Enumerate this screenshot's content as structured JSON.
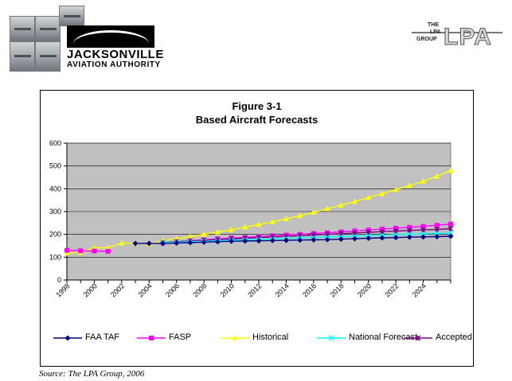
{
  "header": {
    "org_name": "JACKSONVILLE",
    "org_subtitle": "AVIATION AUTHORITY",
    "consultant_logo_small": [
      "THE",
      "LPA",
      "GROUP"
    ],
    "consultant_logo_big": "LPA"
  },
  "chart_data": {
    "type": "line",
    "title": "Figure 3-1",
    "subtitle": "Based Aircraft Forecasts",
    "xlabel": "",
    "ylabel": "",
    "ylim": [
      0,
      600
    ],
    "yticks": [
      0,
      100,
      200,
      300,
      400,
      500,
      600
    ],
    "xlim": [
      1998,
      2026
    ],
    "xticks": [
      1998,
      2000,
      2002,
      2004,
      2006,
      2008,
      2010,
      2012,
      2014,
      2016,
      2018,
      2020,
      2022,
      2024
    ],
    "grid": true,
    "legend_position": "bottom",
    "plot_background": "#c0c0c0",
    "x": [
      1998,
      1999,
      2000,
      2001,
      2002,
      2003,
      2004,
      2005,
      2006,
      2007,
      2008,
      2009,
      2010,
      2011,
      2012,
      2013,
      2014,
      2015,
      2016,
      2017,
      2018,
      2019,
      2020,
      2021,
      2022,
      2023,
      2024,
      2025,
      2026
    ],
    "series": [
      {
        "name": "FAA TAF",
        "color": "#000080",
        "marker": "diamond",
        "values": [
          null,
          null,
          null,
          null,
          null,
          160,
          160,
          160,
          162,
          164,
          166,
          168,
          170,
          171,
          172,
          173,
          174,
          175,
          176,
          177,
          179,
          181,
          183,
          185,
          186,
          188,
          189,
          190,
          192
        ]
      },
      {
        "name": "FASP",
        "color": "#ff00ff",
        "marker": "square",
        "values": [
          130,
          128,
          127,
          126,
          null,
          null,
          null,
          162,
          167,
          172,
          176,
          180,
          184,
          187,
          190,
          194,
          197,
          200,
          204,
          207,
          211,
          215,
          219,
          223,
          227,
          231,
          235,
          240,
          245
        ]
      },
      {
        "name": "Historical",
        "color": "#ffff00",
        "marker": "triangle",
        "values": [
          118,
          121,
          141,
          141,
          162,
          160,
          158,
          173,
          180,
          190,
          200,
          210,
          220,
          232,
          243,
          255,
          268,
          282,
          297,
          312,
          328,
          344,
          361,
          378,
          396,
          414,
          433,
          455,
          480
        ]
      },
      {
        "name": "National Forecast",
        "color": "#00ffff",
        "marker": "x",
        "values": [
          null,
          null,
          null,
          null,
          null,
          null,
          null,
          164,
          166,
          168,
          170,
          172,
          174,
          176,
          178,
          180,
          182,
          184,
          186,
          188,
          190,
          192,
          194,
          196,
          198,
          200,
          202,
          204,
          206
        ]
      },
      {
        "name": "Accepted",
        "color": "#800080",
        "marker": "star",
        "values": [
          null,
          null,
          null,
          null,
          null,
          null,
          null,
          165,
          168,
          171,
          174,
          177,
          180,
          183,
          186,
          188,
          191,
          194,
          197,
          200,
          203,
          206,
          209,
          212,
          215,
          217,
          220,
          222,
          225
        ]
      }
    ]
  },
  "footer": {
    "source": "Source: The LPA Group, 2006"
  }
}
